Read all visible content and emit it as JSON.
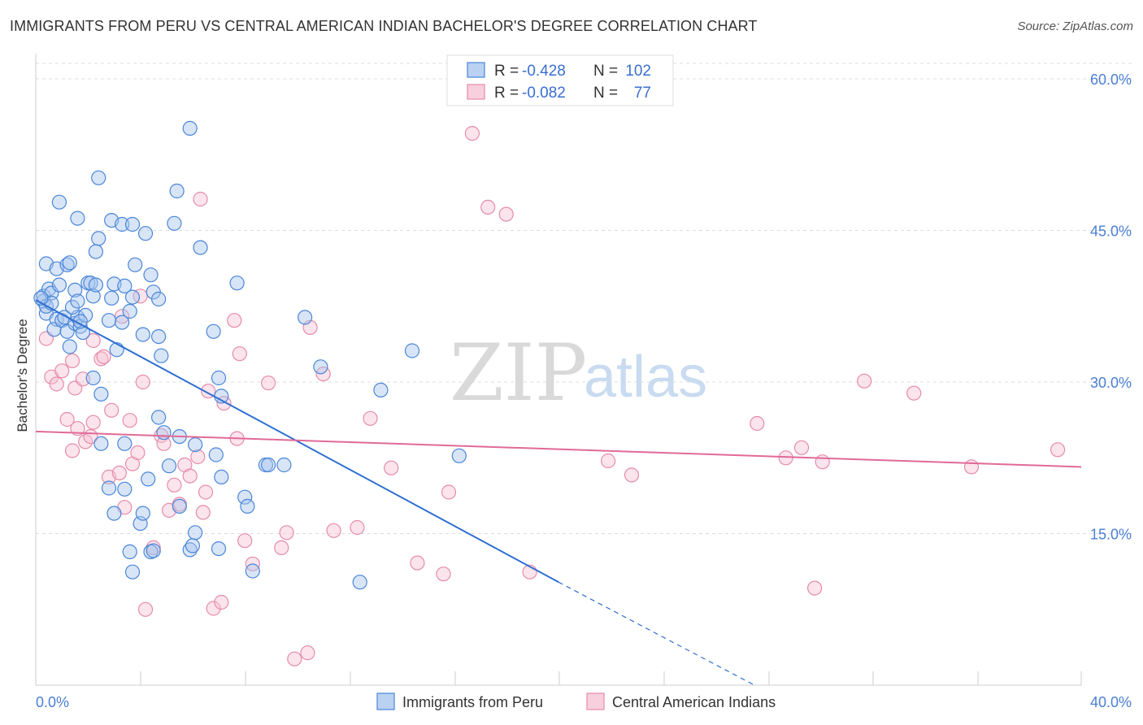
{
  "title": "IMMIGRANTS FROM PERU VS CENTRAL AMERICAN INDIAN BACHELOR'S DEGREE CORRELATION CHART",
  "source": "Source: ZipAtlas.com",
  "watermark": {
    "zip": "ZIP",
    "atlas": "atlas"
  },
  "colors": {
    "blue": "#4a86d8",
    "blue_fill": "#a9c6ee",
    "blue_line": "#2f6fd1",
    "pink": "#e68bab",
    "pink_fill": "#f6c3d4",
    "pink_line": "#e06a97",
    "tick_label": "#4a7fd4",
    "grid": "#dddddd"
  },
  "legend": {
    "rows": [
      {
        "r_label": "R = ",
        "r_value": "-0.428",
        "n_label": "N = ",
        "n_value": "102"
      },
      {
        "r_label": "R = ",
        "r_value": "-0.082",
        "n_label": "N = ",
        "n_value": "77"
      }
    ]
  },
  "chart_data": {
    "type": "scatter",
    "ylabel": "Bachelor's Degree",
    "xlim": [
      0,
      40
    ],
    "ylim": [
      0,
      60
    ],
    "x_tick_labels": [
      "0.0%",
      "40.0%"
    ],
    "y_tick_labels": [
      {
        "value": 15,
        "label": "15.0%"
      },
      {
        "value": 30,
        "label": "30.0%"
      },
      {
        "value": 45,
        "label": "45.0%"
      },
      {
        "value": 60,
        "label": "60.0%"
      }
    ],
    "grid": true,
    "legend_position": "top-center",
    "series": [
      {
        "name": "Immigrants from Peru",
        "color": "#4a86d8",
        "r": -0.428,
        "n": 102,
        "trend": {
          "x0": 0,
          "y0": 38.1,
          "x1": 20,
          "y1": 10.2,
          "dashed_to_x": 27.5,
          "dashed_to_y": 0
        },
        "points": [
          [
            0.3,
            38.0
          ],
          [
            0.4,
            36.8
          ],
          [
            0.3,
            38.5
          ],
          [
            0.5,
            39.2
          ],
          [
            0.4,
            37.5
          ],
          [
            0.6,
            38.8
          ],
          [
            0.8,
            36.2
          ],
          [
            0.7,
            35.2
          ],
          [
            0.6,
            37.8
          ],
          [
            0.9,
            39.6
          ],
          [
            0.4,
            41.7
          ],
          [
            0.8,
            41.2
          ],
          [
            1.2,
            41.6
          ],
          [
            1.0,
            36.1
          ],
          [
            1.1,
            36.4
          ],
          [
            1.2,
            35.0
          ],
          [
            1.3,
            33.5
          ],
          [
            1.5,
            35.8
          ],
          [
            1.6,
            36.4
          ],
          [
            1.4,
            37.4
          ],
          [
            1.5,
            39.1
          ],
          [
            1.6,
            38.0
          ],
          [
            1.7,
            35.5
          ],
          [
            1.8,
            34.9
          ],
          [
            1.9,
            36.6
          ],
          [
            2.0,
            39.8
          ],
          [
            2.1,
            39.8
          ],
          [
            2.2,
            38.5
          ],
          [
            2.3,
            39.6
          ],
          [
            2.2,
            30.4
          ],
          [
            2.5,
            28.8
          ],
          [
            2.8,
            36.1
          ],
          [
            2.9,
            38.3
          ],
          [
            3.0,
            39.7
          ],
          [
            3.1,
            33.2
          ],
          [
            3.3,
            35.9
          ],
          [
            3.4,
            39.5
          ],
          [
            3.6,
            37.0
          ],
          [
            3.7,
            38.4
          ],
          [
            4.1,
            34.7
          ],
          [
            4.4,
            40.6
          ],
          [
            4.5,
            38.9
          ],
          [
            4.7,
            38.2
          ],
          [
            4.7,
            34.5
          ],
          [
            4.8,
            32.6
          ],
          [
            0.9,
            47.8
          ],
          [
            1.6,
            46.2
          ],
          [
            2.4,
            50.2
          ],
          [
            2.4,
            44.2
          ],
          [
            2.3,
            42.9
          ],
          [
            2.9,
            46.0
          ],
          [
            3.3,
            45.6
          ],
          [
            3.7,
            45.6
          ],
          [
            3.8,
            41.6
          ],
          [
            4.2,
            44.7
          ],
          [
            5.3,
            45.7
          ],
          [
            5.4,
            48.9
          ],
          [
            5.9,
            55.1
          ],
          [
            6.3,
            43.3
          ],
          [
            7.7,
            39.8
          ],
          [
            6.8,
            35.0
          ],
          [
            7.0,
            30.4
          ],
          [
            7.1,
            28.6
          ],
          [
            3.4,
            23.9
          ],
          [
            4.7,
            26.5
          ],
          [
            4.9,
            25.0
          ],
          [
            5.1,
            21.7
          ],
          [
            5.5,
            24.6
          ],
          [
            6.1,
            15.1
          ],
          [
            5.9,
            13.4
          ],
          [
            3.0,
            17.0
          ],
          [
            2.8,
            19.5
          ],
          [
            3.4,
            19.4
          ],
          [
            4.3,
            20.4
          ],
          [
            4.0,
            16.0
          ],
          [
            4.1,
            17.0
          ],
          [
            3.6,
            13.2
          ],
          [
            3.7,
            11.2
          ],
          [
            4.4,
            13.2
          ],
          [
            4.5,
            13.3
          ],
          [
            6.0,
            13.8
          ],
          [
            6.9,
            22.8
          ],
          [
            7.1,
            20.6
          ],
          [
            7.0,
            13.5
          ],
          [
            8.0,
            18.6
          ],
          [
            8.1,
            17.7
          ],
          [
            8.3,
            11.3
          ],
          [
            8.8,
            21.8
          ],
          [
            8.9,
            21.8
          ],
          [
            9.5,
            21.8
          ],
          [
            10.3,
            36.4
          ],
          [
            10.9,
            31.5
          ],
          [
            12.4,
            10.2
          ],
          [
            13.2,
            29.2
          ],
          [
            14.4,
            33.1
          ],
          [
            16.2,
            22.7
          ],
          [
            2.5,
            23.9
          ],
          [
            1.7,
            36.0
          ],
          [
            1.3,
            41.8
          ],
          [
            5.5,
            17.7
          ],
          [
            6.1,
            23.8
          ],
          [
            0.2,
            38.3
          ]
        ]
      },
      {
        "name": "Central American Indians",
        "color": "#e68bab",
        "r": -0.082,
        "n": 77,
        "trend": {
          "x0": 0,
          "y0": 25.1,
          "x1": 40,
          "y1": 21.6
        },
        "points": [
          [
            0.4,
            34.3
          ],
          [
            0.6,
            30.5
          ],
          [
            0.8,
            29.8
          ],
          [
            1.0,
            31.1
          ],
          [
            1.2,
            26.3
          ],
          [
            1.4,
            23.2
          ],
          [
            1.5,
            29.4
          ],
          [
            1.6,
            25.4
          ],
          [
            1.8,
            30.3
          ],
          [
            1.9,
            24.1
          ],
          [
            2.1,
            24.6
          ],
          [
            2.2,
            34.1
          ],
          [
            2.5,
            32.3
          ],
          [
            2.6,
            32.5
          ],
          [
            2.8,
            20.6
          ],
          [
            2.9,
            27.2
          ],
          [
            3.2,
            21.0
          ],
          [
            3.4,
            17.6
          ],
          [
            3.6,
            26.2
          ],
          [
            3.7,
            21.9
          ],
          [
            3.9,
            23.0
          ],
          [
            4.0,
            38.5
          ],
          [
            3.3,
            36.5
          ],
          [
            4.2,
            7.5
          ],
          [
            4.5,
            13.6
          ],
          [
            4.8,
            24.7
          ],
          [
            4.9,
            23.9
          ],
          [
            5.1,
            17.3
          ],
          [
            5.3,
            19.8
          ],
          [
            5.5,
            17.9
          ],
          [
            5.7,
            21.8
          ],
          [
            5.9,
            20.7
          ],
          [
            6.2,
            22.6
          ],
          [
            6.4,
            17.1
          ],
          [
            6.5,
            19.1
          ],
          [
            6.6,
            29.1
          ],
          [
            6.8,
            7.6
          ],
          [
            7.1,
            8.2
          ],
          [
            7.2,
            27.9
          ],
          [
            7.6,
            36.1
          ],
          [
            7.7,
            24.4
          ],
          [
            7.8,
            32.8
          ],
          [
            8.0,
            14.3
          ],
          [
            8.3,
            12.0
          ],
          [
            8.9,
            29.9
          ],
          [
            9.4,
            13.6
          ],
          [
            9.6,
            15.1
          ],
          [
            9.9,
            2.6
          ],
          [
            10.4,
            3.2
          ],
          [
            10.5,
            35.4
          ],
          [
            11.0,
            30.8
          ],
          [
            11.4,
            15.3
          ],
          [
            12.3,
            15.6
          ],
          [
            12.8,
            26.4
          ],
          [
            13.6,
            21.5
          ],
          [
            14.6,
            12.1
          ],
          [
            15.6,
            11.0
          ],
          [
            15.8,
            19.1
          ],
          [
            16.7,
            54.6
          ],
          [
            17.3,
            47.3
          ],
          [
            18.0,
            46.6
          ],
          [
            18.9,
            11.2
          ],
          [
            21.9,
            22.2
          ],
          [
            22.8,
            20.8
          ],
          [
            27.6,
            25.9
          ],
          [
            28.7,
            22.5
          ],
          [
            29.3,
            23.5
          ],
          [
            29.8,
            9.6
          ],
          [
            30.1,
            22.1
          ],
          [
            31.7,
            30.1
          ],
          [
            33.6,
            28.9
          ],
          [
            35.8,
            21.6
          ],
          [
            39.1,
            23.3
          ],
          [
            6.3,
            48.1
          ],
          [
            2.2,
            26.0
          ],
          [
            1.4,
            32.1
          ],
          [
            4.1,
            30.0
          ]
        ]
      }
    ]
  }
}
